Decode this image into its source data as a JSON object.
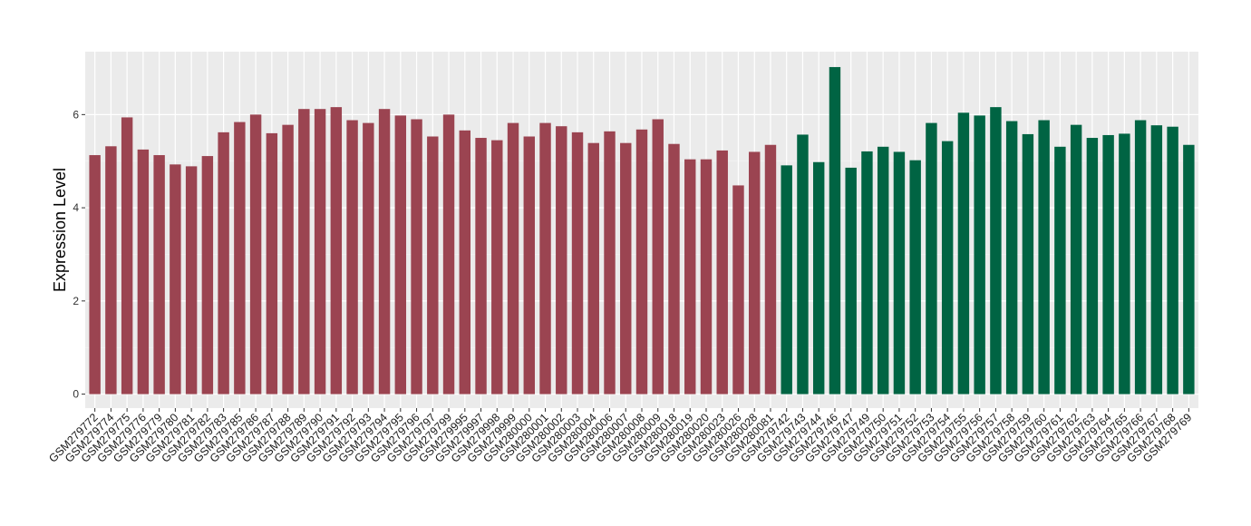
{
  "chart_data": {
    "type": "bar",
    "ylabel": "Expression Level",
    "xlabel": "",
    "ylim": [
      -0.3,
      7.35
    ],
    "yticks": [
      0,
      2,
      4,
      6
    ],
    "ytick_labels": [
      "0",
      "2",
      "4",
      "6"
    ],
    "grid": true,
    "background": "#ebebeb",
    "group_colors": [
      "#9b4451",
      "#006443"
    ],
    "categories": [
      "GSM279772",
      "GSM279774",
      "GSM279775",
      "GSM279776",
      "GSM279779",
      "GSM279780",
      "GSM279781",
      "GSM279782",
      "GSM279783",
      "GSM279785",
      "GSM279786",
      "GSM279787",
      "GSM279788",
      "GSM279789",
      "GSM279790",
      "GSM279791",
      "GSM279792",
      "GSM279793",
      "GSM279794",
      "GSM279795",
      "GSM279796",
      "GSM279797",
      "GSM279799",
      "GSM279995",
      "GSM279997",
      "GSM279998",
      "GSM279999",
      "GSM280000",
      "GSM280001",
      "GSM280002",
      "GSM280003",
      "GSM280004",
      "GSM280006",
      "GSM280007",
      "GSM280008",
      "GSM280009",
      "GSM280018",
      "GSM280019",
      "GSM280020",
      "GSM280023",
      "GSM280026",
      "GSM280028",
      "GSM280081",
      "GSM279742",
      "GSM279743",
      "GSM279744",
      "GSM279746",
      "GSM279747",
      "GSM279749",
      "GSM279750",
      "GSM279751",
      "GSM279752",
      "GSM279753",
      "GSM279754",
      "GSM279755",
      "GSM279756",
      "GSM279757",
      "GSM279758",
      "GSM279759",
      "GSM279760",
      "GSM279761",
      "GSM279762",
      "GSM279763",
      "GSM279764",
      "GSM279765",
      "GSM279766",
      "GSM279767",
      "GSM279768",
      "GSM279769"
    ],
    "values": [
      5.13,
      5.32,
      5.94,
      5.25,
      5.13,
      4.93,
      4.89,
      5.11,
      5.62,
      5.84,
      6.0,
      5.6,
      5.78,
      6.12,
      6.12,
      6.16,
      5.88,
      5.82,
      6.12,
      5.98,
      5.9,
      5.53,
      6.0,
      5.66,
      5.5,
      5.45,
      5.82,
      5.53,
      5.82,
      5.75,
      5.62,
      5.39,
      5.64,
      5.39,
      5.68,
      5.9,
      5.37,
      5.04,
      5.04,
      5.23,
      4.48,
      5.2,
      5.35,
      4.91,
      5.57,
      4.98,
      7.02,
      4.86,
      5.21,
      5.31,
      5.2,
      5.02,
      5.82,
      5.43,
      6.04,
      5.98,
      6.16,
      5.86,
      5.58,
      5.88,
      5.31,
      5.78,
      5.5,
      5.56,
      5.59,
      5.88,
      5.77,
      5.74,
      5.35
    ],
    "groups": [
      0,
      0,
      0,
      0,
      0,
      0,
      0,
      0,
      0,
      0,
      0,
      0,
      0,
      0,
      0,
      0,
      0,
      0,
      0,
      0,
      0,
      0,
      0,
      0,
      0,
      0,
      0,
      0,
      0,
      0,
      0,
      0,
      0,
      0,
      0,
      0,
      0,
      0,
      0,
      0,
      0,
      0,
      0,
      1,
      1,
      1,
      1,
      1,
      1,
      1,
      1,
      1,
      1,
      1,
      1,
      1,
      1,
      1,
      1,
      1,
      1,
      1,
      1,
      1,
      1,
      1,
      1,
      1,
      1
    ]
  }
}
